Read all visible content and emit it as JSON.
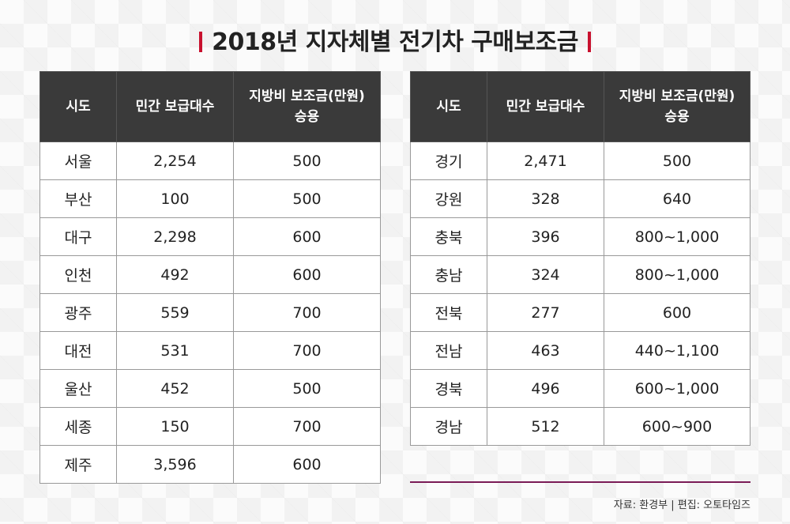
{
  "title": "2018년 지자체별 전기차 구매보조금",
  "headers": {
    "region": "시도",
    "supply": "민간 보급대수",
    "subsidy_line1": "지방비 보조금(만원)",
    "subsidy_line2": "승용"
  },
  "left_rows": [
    {
      "region": "서울",
      "supply": "2,254",
      "subsidy": "500"
    },
    {
      "region": "부산",
      "supply": "100",
      "subsidy": "500"
    },
    {
      "region": "대구",
      "supply": "2,298",
      "subsidy": "600"
    },
    {
      "region": "인천",
      "supply": "492",
      "subsidy": "600"
    },
    {
      "region": "광주",
      "supply": "559",
      "subsidy": "700"
    },
    {
      "region": "대전",
      "supply": "531",
      "subsidy": "700"
    },
    {
      "region": "울산",
      "supply": "452",
      "subsidy": "500"
    },
    {
      "region": "세종",
      "supply": "150",
      "subsidy": "700"
    },
    {
      "region": "제주",
      "supply": "3,596",
      "subsidy": "600"
    }
  ],
  "right_rows": [
    {
      "region": "경기",
      "supply": "2,471",
      "subsidy": "500"
    },
    {
      "region": "강원",
      "supply": "328",
      "subsidy": "640"
    },
    {
      "region": "충북",
      "supply": "396",
      "subsidy": "800~1,000"
    },
    {
      "region": "충남",
      "supply": "324",
      "subsidy": "800~1,000"
    },
    {
      "region": "전북",
      "supply": "277",
      "subsidy": "600"
    },
    {
      "region": "전남",
      "supply": "463",
      "subsidy": "440~1,100"
    },
    {
      "region": "경북",
      "supply": "496",
      "subsidy": "600~1,000"
    },
    {
      "region": "경남",
      "supply": "512",
      "subsidy": "600~900"
    }
  ],
  "source": "자료: 환경부 | 편집: 오토타임즈",
  "colors": {
    "accent": "#c8102e",
    "header_bg": "#3a3a3a",
    "rule": "#7a1b56"
  }
}
